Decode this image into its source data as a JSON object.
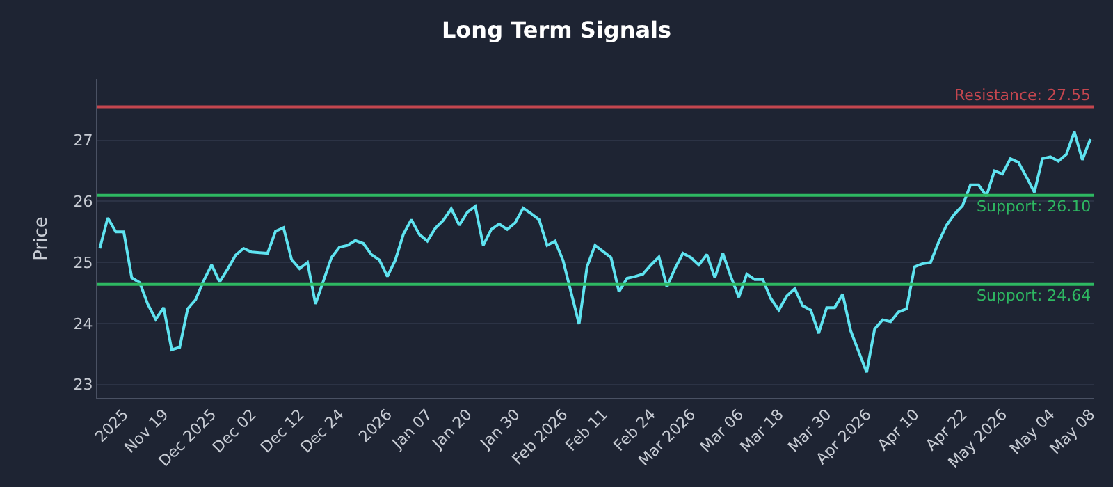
{
  "chart_data": {
    "type": "line",
    "title": "Long Term Signals",
    "ylabel": "Price",
    "categories": [
      null,
      null,
      null,
      "2025",
      null,
      null,
      null,
      null,
      "Nov 19",
      null,
      null,
      null,
      null,
      null,
      "Dec 2025",
      null,
      null,
      null,
      null,
      "Dec 02",
      null,
      null,
      null,
      null,
      null,
      "Dec 12",
      null,
      null,
      null,
      null,
      "Dec 24",
      null,
      null,
      null,
      null,
      null,
      "2026",
      null,
      null,
      null,
      null,
      "Jan 07",
      null,
      null,
      null,
      null,
      "Jan 20",
      null,
      null,
      null,
      null,
      null,
      "Jan 30",
      null,
      null,
      null,
      null,
      null,
      "Feb 2026",
      null,
      null,
      null,
      null,
      "Feb 11",
      null,
      null,
      null,
      null,
      null,
      "Feb 24",
      null,
      null,
      null,
      null,
      "Mar 2026",
      null,
      null,
      null,
      null,
      null,
      "Mar 06",
      null,
      null,
      null,
      null,
      "Mar 18",
      null,
      null,
      null,
      null,
      null,
      "Mar 30",
      null,
      null,
      null,
      null,
      "Apr 2026",
      null,
      null,
      null,
      null,
      null,
      "Apr 10",
      null,
      null,
      null,
      null,
      null,
      "Apr 22",
      null,
      null,
      null,
      null,
      "May 2026",
      null,
      null,
      null,
      null,
      null,
      "May 04",
      null,
      null,
      null,
      null,
      "May 08"
    ],
    "series": [
      {
        "color": "#5fe3f0",
        "values": [
          25.23,
          25.73,
          25.5,
          25.5,
          24.75,
          24.67,
          24.32,
          24.07,
          24.26,
          23.57,
          23.61,
          24.24,
          24.39,
          24.7,
          24.96,
          24.68,
          24.89,
          25.12,
          25.23,
          25.17,
          25.16,
          25.15,
          25.51,
          25.57,
          25.05,
          24.9,
          25.0,
          24.32,
          24.7,
          25.08,
          25.25,
          25.28,
          25.36,
          25.31,
          25.13,
          25.04,
          24.77,
          25.04,
          25.46,
          25.7,
          25.46,
          25.35,
          25.56,
          25.69,
          25.88,
          25.61,
          25.82,
          25.92,
          25.28,
          25.54,
          25.63,
          25.54,
          25.65,
          25.89,
          25.8,
          25.7,
          25.28,
          25.35,
          25.03,
          24.51,
          23.99,
          24.93,
          25.28,
          25.18,
          25.08,
          24.52,
          24.74,
          24.77,
          24.81,
          24.96,
          25.09,
          24.6,
          24.9,
          25.15,
          25.08,
          24.96,
          25.13,
          24.75,
          25.15,
          24.77,
          24.43,
          24.81,
          24.72,
          24.72,
          24.41,
          24.22,
          24.45,
          24.57,
          24.29,
          24.22,
          23.84,
          24.26,
          24.26,
          24.48,
          23.88,
          23.54,
          23.2,
          23.91,
          24.06,
          24.03,
          24.19,
          24.24,
          24.93,
          24.98,
          25.0,
          25.33,
          25.61,
          25.79,
          25.93,
          26.27,
          26.27,
          26.09,
          26.5,
          26.45,
          26.7,
          26.64,
          26.4,
          26.15,
          26.7,
          26.73,
          26.66,
          26.77,
          27.14,
          26.68,
          27.02
        ]
      }
    ],
    "ylim": [
      22.78,
      28.0
    ],
    "yticks": [
      23,
      24,
      25,
      26,
      27
    ],
    "grid": "y",
    "marker": "none",
    "line_style": "solid",
    "ref_lines": [
      {
        "axis": "y",
        "value": 27.55,
        "label": "Resistance: 27.55",
        "color": "#c4464f"
      },
      {
        "axis": "y",
        "value": 26.1,
        "label": "Support: 26.10",
        "color": "#2eb862"
      },
      {
        "axis": "y",
        "value": 24.64,
        "label": "Support: 24.64",
        "color": "#2eb862"
      }
    ]
  }
}
